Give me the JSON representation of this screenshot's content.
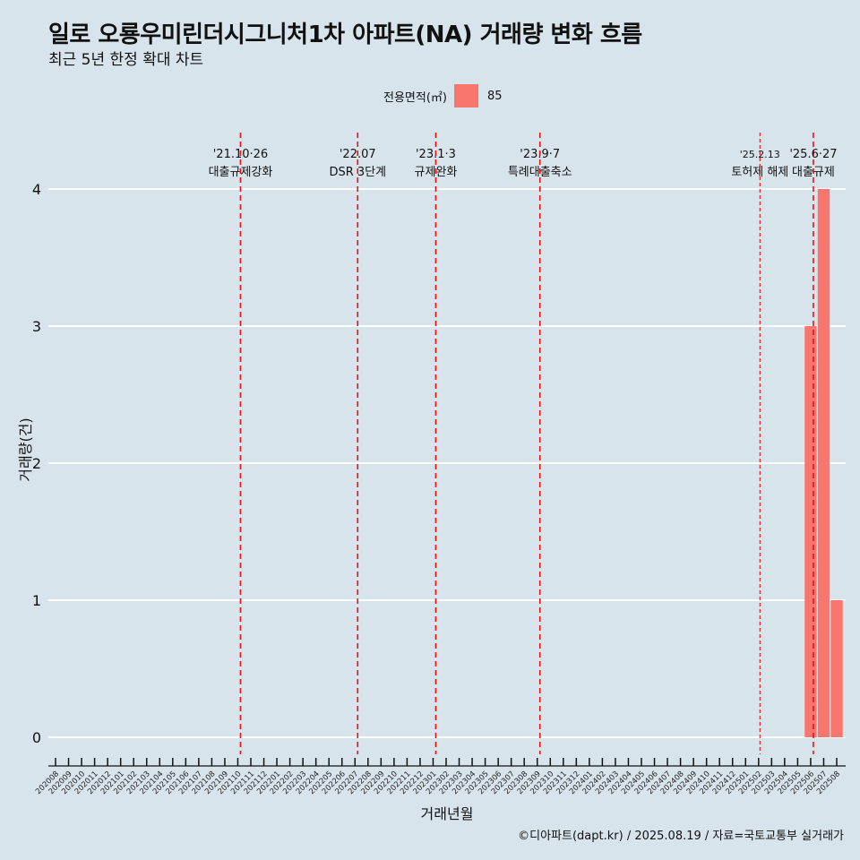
{
  "title": "일로 오룡우미린더시그니처1차 아파트(NA) 거래량 변화 흐름",
  "subtitle": "최근 5년 한정 확대 차트",
  "caption": "©디아파트(dapt.kr) / 2025.08.19 / 자료=국토교통부 실거래가",
  "legend": {
    "title": "전용면적(㎡)",
    "items": [
      {
        "label": "85",
        "color": "#f8766d"
      }
    ]
  },
  "chart_data": {
    "type": "bar",
    "title": "일로 오룡우미린더시그니처1차 아파트(NA) 거래량 변화 흐름",
    "subtitle": "최근 5년 한정 확대 차트",
    "xlabel": "거래년월",
    "ylabel": "거래량(건)",
    "ylim": [
      0,
      4
    ],
    "yticks": [
      0,
      1,
      2,
      3,
      4
    ],
    "grid": true,
    "legend_position": "top",
    "categories": [
      "202008",
      "202009",
      "202010",
      "202011",
      "202012",
      "202101",
      "202102",
      "202103",
      "202104",
      "202105",
      "202106",
      "202107",
      "202108",
      "202109",
      "202110",
      "202111",
      "202112",
      "202201",
      "202202",
      "202203",
      "202204",
      "202205",
      "202206",
      "202207",
      "202208",
      "202209",
      "202210",
      "202211",
      "202212",
      "202301",
      "202302",
      "202303",
      "202304",
      "202305",
      "202306",
      "202307",
      "202308",
      "202309",
      "202310",
      "202311",
      "202312",
      "202401",
      "202402",
      "202403",
      "202404",
      "202405",
      "202406",
      "202407",
      "202408",
      "202409",
      "202410",
      "202411",
      "202412",
      "202501",
      "202502",
      "202503",
      "202504",
      "202505",
      "202506",
      "202507",
      "202508"
    ],
    "series": [
      {
        "name": "85",
        "color": "#f8766d",
        "values": [
          0,
          0,
          0,
          0,
          0,
          0,
          0,
          0,
          0,
          0,
          0,
          0,
          0,
          0,
          0,
          0,
          0,
          0,
          0,
          0,
          0,
          0,
          0,
          0,
          0,
          0,
          0,
          0,
          0,
          0,
          0,
          0,
          0,
          0,
          0,
          0,
          0,
          0,
          0,
          0,
          0,
          0,
          0,
          0,
          0,
          0,
          0,
          0,
          0,
          0,
          0,
          0,
          0,
          0,
          0,
          0,
          0,
          0,
          3,
          4,
          1
        ]
      }
    ],
    "annotations": [
      {
        "category": "202110",
        "date": "'21.10·26",
        "label": "대출규제강화",
        "style": "major"
      },
      {
        "category": "202207",
        "date": "'22.07",
        "label": "DSR 3단계",
        "style": "major"
      },
      {
        "category": "202301",
        "date": "'23.1·3",
        "label": "규제완화",
        "style": "major"
      },
      {
        "category": "202309",
        "date": "'23.9·7",
        "label": "특례대출축소",
        "style": "major"
      },
      {
        "category": "202502",
        "date": "'25.2.13",
        "label": "토허제 해제",
        "style": "minor"
      },
      {
        "category": "202506",
        "date": "'25.6·27",
        "label": "대출규제",
        "style": "major"
      }
    ]
  }
}
